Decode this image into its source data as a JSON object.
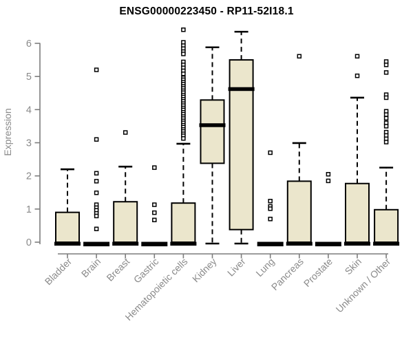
{
  "chart_data": {
    "type": "boxplot",
    "title": "ENSG00000223450 - RP11-52I18.1",
    "ylabel": "Expression",
    "xlabel": "",
    "ylim": [
      0,
      6.5
    ],
    "yticks": [
      0,
      1,
      2,
      3,
      4,
      5,
      6
    ],
    "grid": false,
    "legend": "none",
    "categories": [
      "Bladder",
      "Brain",
      "Breast",
      "Gastric",
      "Hematopoietic cells",
      "Kidney",
      "Liver",
      "Lung",
      "Pancreas",
      "Prostate",
      "Skin",
      "Unknown / Other"
    ],
    "series": [
      {
        "name": "Bladder",
        "q1": 0,
        "median": 0,
        "q3": 0.9,
        "whisker_low": 0,
        "whisker_high": 2.2,
        "outliers": []
      },
      {
        "name": "Brain",
        "q1": 0,
        "median": 0,
        "q3": 0,
        "whisker_low": 0,
        "whisker_high": 0,
        "outliers": [
          5.2,
          3.1,
          2.08,
          1.84,
          1.49,
          1.13,
          1.04,
          0.96,
          0.87,
          0.79,
          0.4
        ]
      },
      {
        "name": "Breast",
        "q1": 0,
        "median": 0,
        "q3": 1.22,
        "whisker_low": 0,
        "whisker_high": 2.28,
        "outliers": [
          3.31
        ]
      },
      {
        "name": "Gastric",
        "q1": 0,
        "median": 0,
        "q3": 0,
        "whisker_low": 0,
        "whisker_high": 0,
        "outliers": [
          2.25,
          1.13,
          0.89,
          0.67
        ]
      },
      {
        "name": "Hematopoietic cells",
        "q1": 0,
        "median": 0,
        "q3": 1.18,
        "whisker_low": 0,
        "whisker_high": 2.97,
        "outliers": [
          6.41,
          6.03,
          5.93,
          5.84,
          5.75,
          5.68,
          5.44,
          5.35,
          5.26,
          5.17,
          5.08,
          4.96,
          4.9,
          4.83,
          4.77,
          4.7,
          4.64,
          4.57,
          4.51,
          4.44,
          4.38,
          4.31,
          4.25,
          4.18,
          4.12,
          4.05,
          3.99,
          3.92,
          3.86,
          3.79,
          3.73,
          3.66,
          3.6,
          3.53,
          3.47,
          3.4,
          3.34,
          3.27,
          3.21,
          3.13
        ]
      },
      {
        "name": "Kidney",
        "q1": 2.38,
        "median": 3.53,
        "q3": 4.29,
        "whisker_low": 0,
        "whisker_high": 5.88,
        "outliers": []
      },
      {
        "name": "Liver",
        "q1": 0.38,
        "median": 4.62,
        "q3": 5.5,
        "whisker_low": 0,
        "whisker_high": 6.35,
        "outliers": []
      },
      {
        "name": "Lung",
        "q1": 0,
        "median": 0,
        "q3": 0,
        "whisker_low": 0,
        "whisker_high": 0,
        "outliers": [
          2.7,
          1.24,
          1.08,
          1.01,
          0.7
        ]
      },
      {
        "name": "Pancreas",
        "q1": 0,
        "median": 0,
        "q3": 1.84,
        "whisker_low": 0,
        "whisker_high": 2.99,
        "outliers": [
          5.61
        ]
      },
      {
        "name": "Prostate",
        "q1": 0,
        "median": 0,
        "q3": 0,
        "whisker_low": 0,
        "whisker_high": 0,
        "outliers": [
          2.05,
          1.85
        ]
      },
      {
        "name": "Skin",
        "q1": 0,
        "median": 0,
        "q3": 1.77,
        "whisker_low": 0,
        "whisker_high": 4.36,
        "outliers": [
          5.61,
          5.02
        ]
      },
      {
        "name": "Unknown / Other",
        "q1": 0,
        "median": 0,
        "q3": 0.98,
        "whisker_low": 0,
        "whisker_high": 2.25,
        "outliers": [
          5.45,
          5.35,
          5.12,
          4.45,
          4.36,
          3.95,
          3.85,
          3.74,
          3.6,
          3.5,
          3.32,
          3.22,
          3.12,
          3.02
        ]
      }
    ],
    "style": {
      "box_fill": "#EBE6CC",
      "box_stroke": "#000000",
      "axis_color": "#7C7C7C",
      "label_color": "#8A8A8A",
      "title_color": "#000000"
    }
  }
}
